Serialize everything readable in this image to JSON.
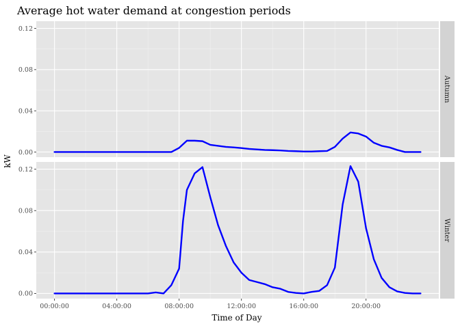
{
  "chart_data": {
    "type": "line",
    "title": "Average hot water demand at congestion periods",
    "xlabel": "Time of Day",
    "ylabel": "kW",
    "x_tick_labels": [
      "00:00:00",
      "04:00:00",
      "08:00:00",
      "12:00:00",
      "16:00:00",
      "20:00:00"
    ],
    "x_tick_hours": [
      0,
      4,
      8,
      12,
      16,
      20
    ],
    "y_ticks": [
      0.0,
      0.04,
      0.08,
      0.12
    ],
    "y_tick_labels": [
      "0.00",
      "0.04",
      "0.08",
      "0.12"
    ],
    "ylim": [
      -0.005,
      0.127
    ],
    "xlim_hours": [
      -1.17,
      24.67
    ],
    "grid": true,
    "line_color": "#0000ff",
    "panels": [
      {
        "facet": "Autumn",
        "x_hours": [
          0,
          0.5,
          1,
          1.5,
          2,
          2.5,
          3,
          3.5,
          4,
          4.5,
          5,
          5.5,
          6,
          6.5,
          7,
          7.5,
          8,
          8.5,
          9,
          9.5,
          10,
          10.5,
          11,
          11.5,
          12,
          12.5,
          13,
          13.5,
          14,
          14.5,
          15,
          15.5,
          16,
          16.5,
          17,
          17.5,
          18,
          18.5,
          19,
          19.5,
          20,
          20.5,
          21,
          21.5,
          22,
          22.5,
          23,
          23.5
        ],
        "values": [
          0,
          0,
          0,
          0,
          0,
          0,
          0,
          0,
          0,
          0,
          0,
          0,
          0,
          0,
          0,
          0,
          0.004,
          0.011,
          0.011,
          0.0105,
          0.007,
          0.006,
          0.005,
          0.0045,
          0.0038,
          0.003,
          0.0025,
          0.002,
          0.0018,
          0.0015,
          0.001,
          0.0008,
          0.0005,
          0.0005,
          0.0008,
          0.001,
          0.005,
          0.013,
          0.019,
          0.018,
          0.015,
          0.009,
          0.006,
          0.0045,
          0.002,
          0,
          0,
          0
        ]
      },
      {
        "facet": "Winter",
        "x_hours": [
          0,
          0.5,
          1,
          1.5,
          2,
          2.5,
          3,
          3.5,
          4,
          4.5,
          5,
          5.5,
          6,
          6.5,
          7,
          7.5,
          8,
          8.25,
          8.5,
          9,
          9.5,
          10,
          10.5,
          11,
          11.5,
          12,
          12.5,
          13,
          13.5,
          14,
          14.5,
          15,
          15.5,
          16,
          16.5,
          17,
          17.5,
          18,
          18.5,
          19,
          19.5,
          20,
          20.5,
          21,
          21.5,
          22,
          22.5,
          23,
          23.5
        ],
        "values": [
          0,
          0,
          0,
          0,
          0,
          0,
          0,
          0,
          0,
          0,
          0,
          0,
          0,
          0.001,
          0,
          0.008,
          0.024,
          0.07,
          0.1,
          0.116,
          0.122,
          0.093,
          0.066,
          0.046,
          0.03,
          0.02,
          0.013,
          0.011,
          0.009,
          0.006,
          0.0045,
          0.0015,
          0.0005,
          0,
          0.0015,
          0.0025,
          0.008,
          0.025,
          0.086,
          0.123,
          0.108,
          0.063,
          0.033,
          0.015,
          0.006,
          0.002,
          0.0005,
          0,
          0
        ]
      }
    ]
  }
}
